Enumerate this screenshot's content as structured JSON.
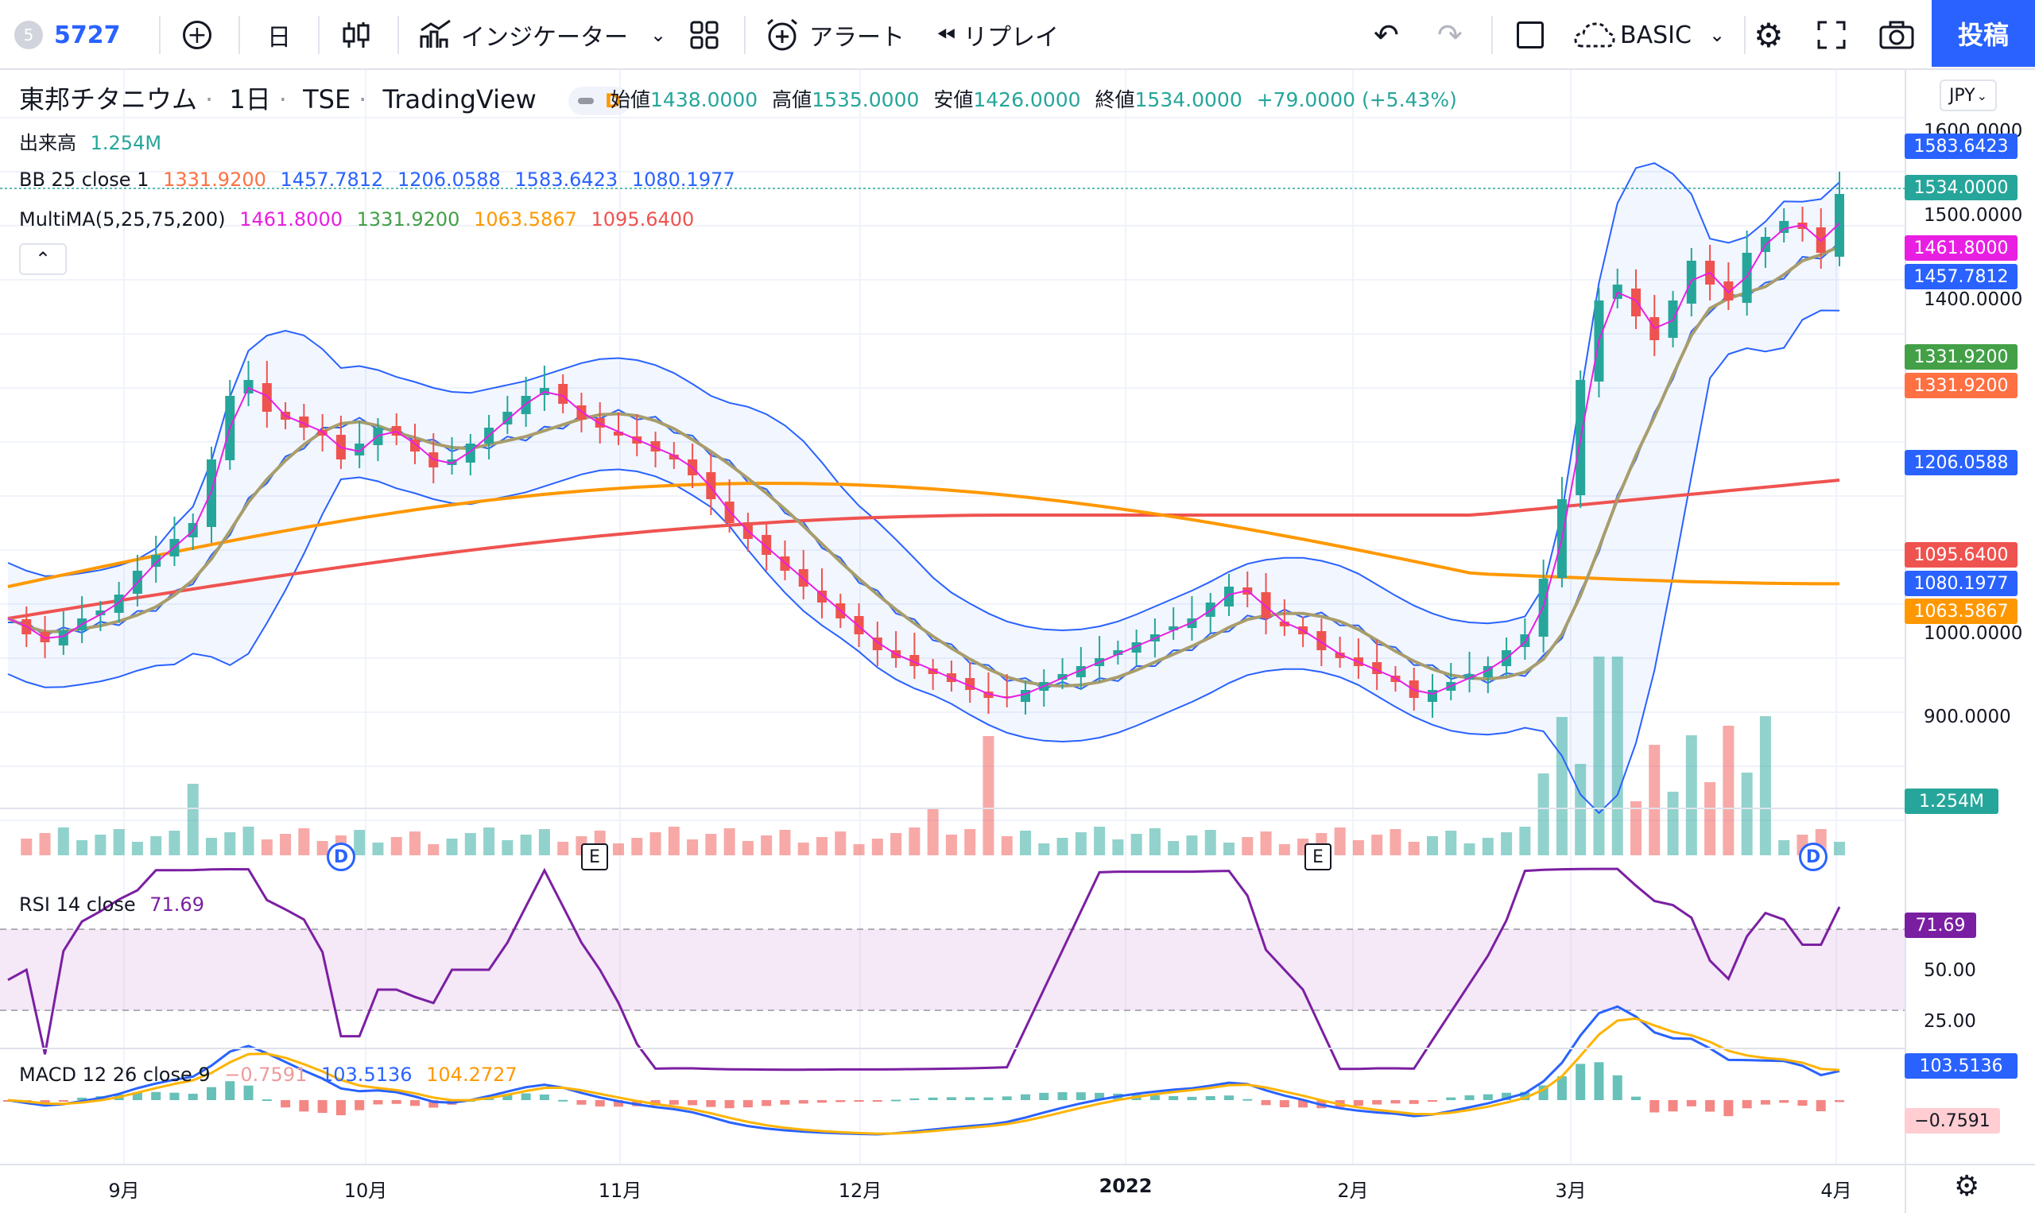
{
  "toolbar": {
    "symbol_badge": "5",
    "symbol": "5727",
    "add_symbol": "+",
    "interval": "日",
    "indicators": "インジケーター",
    "alert": "アラート",
    "replay": "リプレイ",
    "layout": "BASIC",
    "post": "投稿"
  },
  "header": {
    "name": "東邦チタニウム",
    "interval": "1日",
    "exchange": "TSE",
    "source": "TradingView",
    "delay_badge": "D",
    "open_label": "始値",
    "open": "1438.0000",
    "high_label": "高値",
    "high": "1535.0000",
    "low_label": "安値",
    "low": "1426.0000",
    "close_label": "終値",
    "close": "1534.0000",
    "change": "+79.0000 (+5.43%)",
    "currency": "JPY"
  },
  "legends": {
    "volume_label": "出来高",
    "volume": "1.254M",
    "bb_label": "BB 25 close 1",
    "bb_values": [
      "1331.9200",
      "1457.7812",
      "1206.0588",
      "1583.6423",
      "1080.1977"
    ],
    "ma_label": "MultiMA(5,25,75,200)",
    "ma_values": [
      "1461.8000",
      "1331.9200",
      "1063.5867",
      "1095.6400"
    ],
    "rsi_label": "RSI 14 close",
    "rsi": "71.69",
    "macd_label": "MACD 12 26 close 9",
    "macd_values": [
      "−0.7591",
      "103.5136",
      "104.2727"
    ]
  },
  "price_axis": [
    "1600.0000",
    "1500.0000",
    "1400.0000",
    "1000.0000",
    "900.0000"
  ],
  "price_tags": [
    {
      "text": "1583.6423",
      "color": "#2962ff"
    },
    {
      "text": "1534.0000",
      "color": "#26a69a"
    },
    {
      "text": "1461.8000",
      "color": "#e91ee3"
    },
    {
      "text": "1457.7812",
      "color": "#2962ff"
    },
    {
      "text": "1331.9200",
      "color": "#43a047"
    },
    {
      "text": "1331.9200",
      "color": "#ff7043"
    },
    {
      "text": "1206.0588",
      "color": "#2962ff"
    },
    {
      "text": "1095.6400",
      "color": "#ef5350"
    },
    {
      "text": "1080.1977",
      "color": "#2962ff"
    },
    {
      "text": "1063.5867",
      "color": "#ff9800"
    },
    {
      "text": "1.254M",
      "color": "#26a69a"
    }
  ],
  "rsi_axis": [
    "50.00",
    "25.00"
  ],
  "rsi_tag": "71.69",
  "macd_tags": [
    "103.5136",
    "−0.7591"
  ],
  "x_axis": [
    "9月",
    "10月",
    "11月",
    "12月",
    "2022",
    "2月",
    "3月",
    "4月"
  ],
  "markers": [
    "D",
    "E",
    "E",
    "D"
  ],
  "colors": {
    "up": "#26a69a",
    "down": "#ef5350",
    "bb": "#2962ff",
    "ma5": "#e91ee3",
    "ma25": "#a89d6c",
    "ma75": "#ff9800",
    "ma200": "#ef5350",
    "rsi": "#7b1fa2"
  },
  "chart_data": {
    "type": "candlestick",
    "price_range": [
      820,
      1620
    ],
    "close_series": [
      1000,
      980,
      970,
      985,
      1000,
      1010,
      1030,
      1060,
      1080,
      1100,
      1120,
      1200,
      1280,
      1300,
      1260,
      1250,
      1240,
      1230,
      1200,
      1220,
      1240,
      1230,
      1210,
      1190,
      1200,
      1220,
      1240,
      1260,
      1280,
      1290,
      1270,
      1250,
      1240,
      1230,
      1220,
      1210,
      1200,
      1180,
      1150,
      1120,
      1100,
      1080,
      1060,
      1040,
      1020,
      1000,
      980,
      960,
      950,
      940,
      930,
      920,
      910,
      900,
      900,
      910,
      920,
      930,
      940,
      950,
      960,
      970,
      980,
      990,
      1000,
      1020,
      1040,
      1030,
      1000,
      990,
      980,
      960,
      950,
      940,
      930,
      920,
      900,
      910,
      920,
      930,
      940,
      960,
      980,
      1050,
      1150,
      1300,
      1400,
      1420,
      1380,
      1350,
      1400,
      1450,
      1420,
      1400,
      1460,
      1480,
      1500,
      1490,
      1460,
      1534
    ],
    "rsi_range": [
      0,
      100
    ],
    "rsi_levels": [
      70,
      30
    ]
  }
}
